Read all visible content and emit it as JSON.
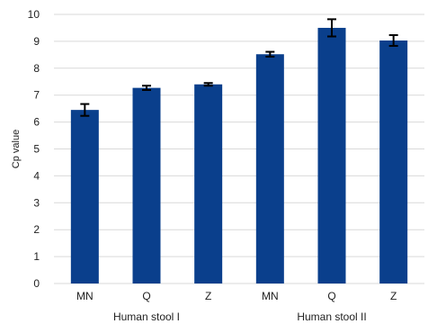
{
  "chart_data": {
    "type": "bar",
    "title": "",
    "xlabel": "",
    "ylabel": "Cp value",
    "ylim": [
      0,
      10
    ],
    "yticks": [
      0,
      1,
      2,
      3,
      4,
      5,
      6,
      7,
      8,
      9,
      10
    ],
    "grid": true,
    "bar_color": "#0a3f8c",
    "groups": [
      {
        "label": "Human stool I",
        "categories": [
          "MN",
          "Q",
          "Z"
        ]
      },
      {
        "label": "Human stool II",
        "categories": [
          "MN",
          "Q",
          "Z"
        ]
      }
    ],
    "categories": [
      "MN",
      "Q",
      "Z",
      "MN",
      "Q",
      "Z"
    ],
    "values": [
      6.45,
      7.27,
      7.4,
      8.52,
      9.5,
      9.03
    ],
    "errors": [
      0.22,
      0.08,
      0.05,
      0.09,
      0.32,
      0.2
    ]
  }
}
